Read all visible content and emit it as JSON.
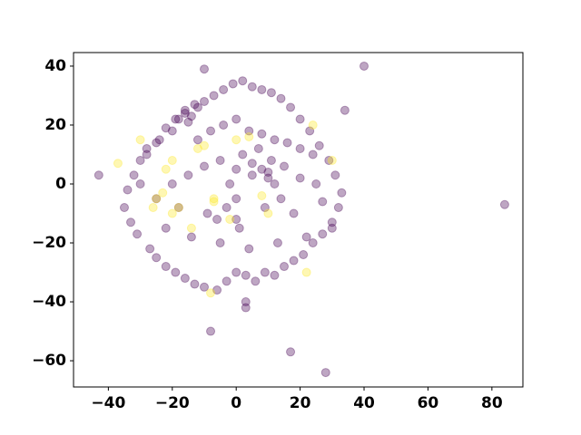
{
  "chart_data": {
    "type": "scatter",
    "xlim": [
      -50.9,
      89.7
    ],
    "ylim": [
      -68.9,
      44.6
    ],
    "xticks": [
      {
        "value": -40,
        "label": "−40"
      },
      {
        "value": -20,
        "label": "−20"
      },
      0,
      20,
      40,
      60,
      80
    ],
    "yticks": [
      {
        "value": -60,
        "label": "−60"
      },
      {
        "value": -40,
        "label": "−40"
      },
      {
        "value": -20,
        "label": "−20"
      },
      0,
      20,
      40
    ],
    "series": [
      {
        "color": "#440154",
        "x": [
          -43,
          84,
          40,
          28,
          17,
          -8,
          3,
          3,
          -10,
          34,
          -16,
          -14,
          -18,
          -12,
          -15,
          -20,
          -24,
          -28,
          -30,
          -32,
          -34,
          -35,
          -33,
          -31,
          -27,
          -25,
          -22,
          -19,
          -16,
          -13,
          -10,
          -6,
          -3,
          0,
          3,
          6,
          9,
          12,
          15,
          18,
          21,
          24,
          27,
          30,
          32,
          33,
          31,
          29,
          26,
          23,
          20,
          17,
          14,
          11,
          8,
          5,
          2,
          -1,
          -4,
          -7,
          -10,
          -13,
          -16,
          -19,
          -22,
          -25,
          -28,
          -12,
          -8,
          -4,
          0,
          4,
          8,
          12,
          16,
          20,
          24,
          -20,
          -15,
          -10,
          -5,
          0,
          5,
          10,
          15,
          20,
          25,
          -25,
          -18,
          -9,
          0,
          9,
          18,
          27,
          -14,
          -5,
          4,
          13,
          22,
          -30,
          -22,
          30,
          5,
          10,
          8,
          12,
          0,
          -3,
          -6,
          2,
          7,
          14,
          1,
          -2,
          11
        ],
        "values": [
          3,
          -7,
          40,
          -64,
          -57,
          -50,
          -42,
          -40,
          39,
          25,
          25,
          23,
          22,
          26,
          21,
          18,
          15,
          12,
          8,
          3,
          -2,
          -8,
          -13,
          -17,
          -22,
          -25,
          -28,
          -30,
          -32,
          -34,
          -35,
          -36,
          -33,
          -30,
          -31,
          -33,
          -30,
          -31,
          -28,
          -26,
          -24,
          -20,
          -17,
          -13,
          -8,
          -3,
          3,
          8,
          13,
          18,
          22,
          26,
          29,
          31,
          32,
          33,
          35,
          34,
          32,
          30,
          28,
          27,
          24,
          22,
          19,
          14,
          10,
          15,
          18,
          20,
          22,
          18,
          17,
          15,
          14,
          12,
          10,
          0,
          3,
          6,
          8,
          5,
          7,
          4,
          6,
          2,
          0,
          -5,
          -8,
          -10,
          -12,
          -8,
          -10,
          -6,
          -18,
          -20,
          -22,
          -20,
          -18,
          0,
          -15,
          -15,
          3,
          2,
          5,
          0,
          -5,
          -8,
          -12,
          10,
          12,
          -5,
          -15,
          0,
          8
        ]
      },
      {
        "color": "#fde725",
        "x": [
          -37,
          -30,
          -22,
          -20,
          -25,
          -23,
          -20,
          -18,
          -12,
          -10,
          -14,
          -7,
          -8,
          -7,
          0,
          4,
          24,
          22,
          30,
          8,
          10,
          -2,
          -26
        ],
        "values": [
          7,
          15,
          5,
          8,
          -5,
          -3,
          -10,
          -8,
          12,
          13,
          -15,
          -5,
          -37,
          -6,
          15,
          16,
          20,
          -30,
          8,
          -4,
          -10,
          -12,
          -8
        ]
      }
    ]
  }
}
